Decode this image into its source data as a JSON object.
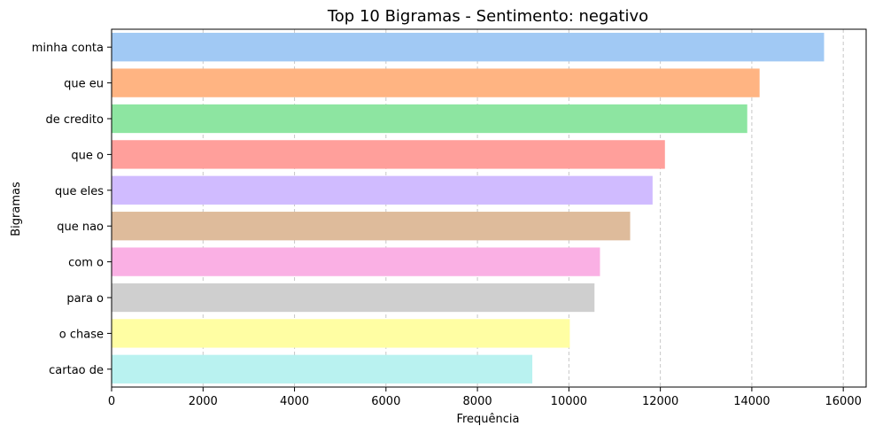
{
  "chart_data": {
    "type": "bar",
    "orientation": "horizontal",
    "title": "Top 10 Bigramas - Sentimento: negativo",
    "xlabel": "Frequência",
    "ylabel": "Bigramas",
    "xlim": [
      0,
      16500
    ],
    "xticks": [
      0,
      2000,
      4000,
      6000,
      8000,
      10000,
      12000,
      14000,
      16000
    ],
    "grid": "x, dashed",
    "categories": [
      "minha conta",
      "que eu",
      "de credito",
      "que o",
      "que eles",
      "que nao",
      "com o",
      "para o",
      "o chase",
      "cartao de"
    ],
    "values": [
      15580,
      14170,
      13900,
      12100,
      11830,
      11340,
      10680,
      10560,
      10020,
      9200
    ],
    "colors": [
      "#a1c9f4",
      "#ffb482",
      "#8de5a1",
      "#ff9f9b",
      "#d0bbff",
      "#debb9b",
      "#fab0e4",
      "#cfcfcf",
      "#fffea3",
      "#b9f2f0"
    ]
  }
}
